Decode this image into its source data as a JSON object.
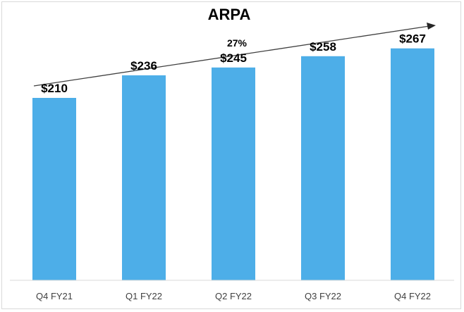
{
  "chart_data": {
    "type": "bar",
    "title": "ARPA",
    "categories": [
      "Q4 FY21",
      "Q1 FY22",
      "Q2 FY22",
      "Q3 FY22",
      "Q4 FY22"
    ],
    "values": [
      210,
      236,
      245,
      258,
      267
    ],
    "value_labels": [
      "$210",
      "$236",
      "$245",
      "$258",
      "$267"
    ],
    "annotation": "27%",
    "xlabel": "",
    "ylabel": "",
    "ylim": [
      0,
      300
    ],
    "grid": false,
    "legend": "none",
    "colors": {
      "bar": "#4DAEE8",
      "arrow": "#404040",
      "axis": "#d9d9d9"
    }
  }
}
